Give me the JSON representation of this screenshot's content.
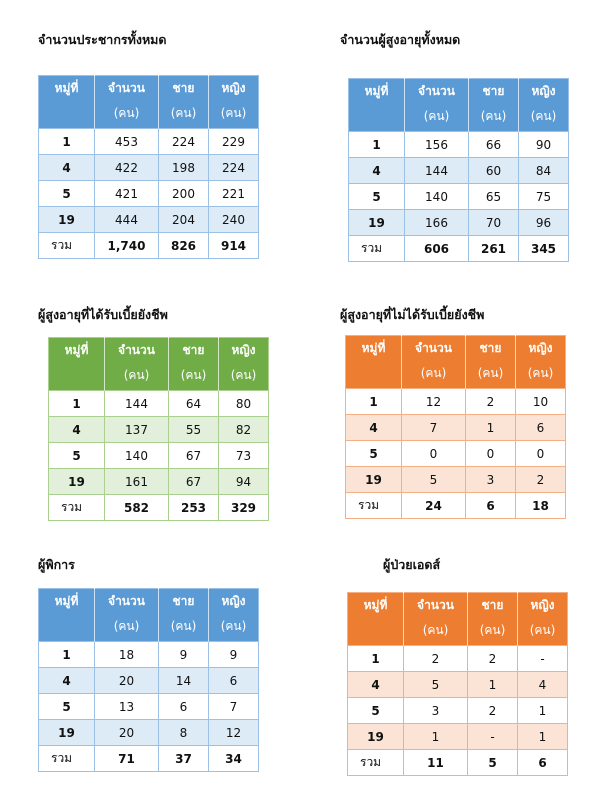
{
  "tables": [
    {
      "title": "จำนวนประชากรทั้งหมด",
      "header": [
        {
          "text": "หมู่ที่"
        },
        {
          "text": "จำนวน",
          "unit": "(คน)"
        },
        {
          "text": "ชาย",
          "unit": "(คน)"
        },
        {
          "text": "หญิง",
          "unit": "(คน)"
        }
      ],
      "rows": [
        [
          1,
          453,
          224,
          229
        ],
        [
          4,
          422,
          198,
          224
        ],
        [
          5,
          421,
          200,
          221
        ],
        [
          19,
          444,
          204,
          240
        ],
        [
          "รวม",
          "1,740",
          826,
          914
        ]
      ]
    },
    {
      "title": "จำนวนผู้สูงอายุทั้งหมด",
      "header": [
        {
          "text": "หมู่ที่"
        },
        {
          "text": "จำนวน",
          "unit": "(คน)"
        },
        {
          "text": "ชาย",
          "unit": "(คน)"
        },
        {
          "text": "หญิง",
          "unit": "(คน)"
        }
      ],
      "rows": [
        [
          1,
          156,
          66,
          90
        ],
        [
          4,
          144,
          60,
          84
        ],
        [
          5,
          140,
          65,
          75
        ],
        [
          19,
          166,
          70,
          96
        ],
        [
          "รวม",
          606,
          261,
          345
        ]
      ]
    },
    {
      "title": "ผู้สูงอายุที่ได้รับเบี้ยยังชีพ",
      "header": [
        {
          "text": "หมู่ที่"
        },
        {
          "text": "จำนวน",
          "unit": "(คน)"
        },
        {
          "text": "ชาย",
          "unit": "(คน)"
        },
        {
          "text": "หญิง",
          "unit": "(คน)"
        }
      ],
      "rows": [
        [
          1,
          144,
          64,
          80
        ],
        [
          4,
          137,
          55,
          82
        ],
        [
          5,
          140,
          67,
          73
        ],
        [
          19,
          161,
          67,
          94
        ],
        [
          "รวม",
          582,
          253,
          329
        ]
      ]
    },
    {
      "title": "ผู้สูงอายุที่ไม่ได้รับเบี้ยยังชีพ",
      "header": [
        {
          "text": "หมู่ที่"
        },
        {
          "text": "จำนวน",
          "unit": "(คน)"
        },
        {
          "text": "ชาย",
          "unit": "(คน)"
        },
        {
          "text": "หญิง",
          "unit": "(คน)"
        }
      ],
      "rows": [
        [
          1,
          12,
          2,
          10
        ],
        [
          4,
          7,
          1,
          6
        ],
        [
          5,
          0,
          0,
          0
        ],
        [
          19,
          5,
          3,
          2
        ],
        [
          "รวม",
          24,
          6,
          18
        ]
      ]
    },
    {
      "title": "ผู้พิการ",
      "header": [
        {
          "text": "หมู่ที่"
        },
        {
          "text": "จำนวน",
          "unit": "(คน)"
        },
        {
          "text": "ชาย",
          "unit": "(คน)"
        },
        {
          "text": "หญิง",
          "unit": "(คน)"
        }
      ],
      "rows": [
        [
          1,
          18,
          9,
          9
        ],
        [
          4,
          20,
          14,
          6
        ],
        [
          5,
          13,
          6,
          7
        ],
        [
          19,
          20,
          8,
          12
        ],
        [
          "รวม",
          71,
          37,
          34
        ]
      ]
    },
    {
      "title": "ผู้ป่วยเอดส์",
      "header": [
        {
          "text": "หมู่ที่"
        },
        {
          "text": "จำนวน",
          "unit": "(คน)"
        },
        {
          "text": "ชาย",
          "unit": "(คน)"
        },
        {
          "text": "หญิง",
          "unit": "(คน)"
        }
      ],
      "rows": [
        [
          1,
          2,
          2,
          "-"
        ],
        [
          4,
          5,
          1,
          4
        ],
        [
          5,
          3,
          2,
          1
        ],
        [
          19,
          1,
          "-",
          1
        ],
        [
          "รวม",
          11,
          5,
          6
        ]
      ]
    }
  ]
}
